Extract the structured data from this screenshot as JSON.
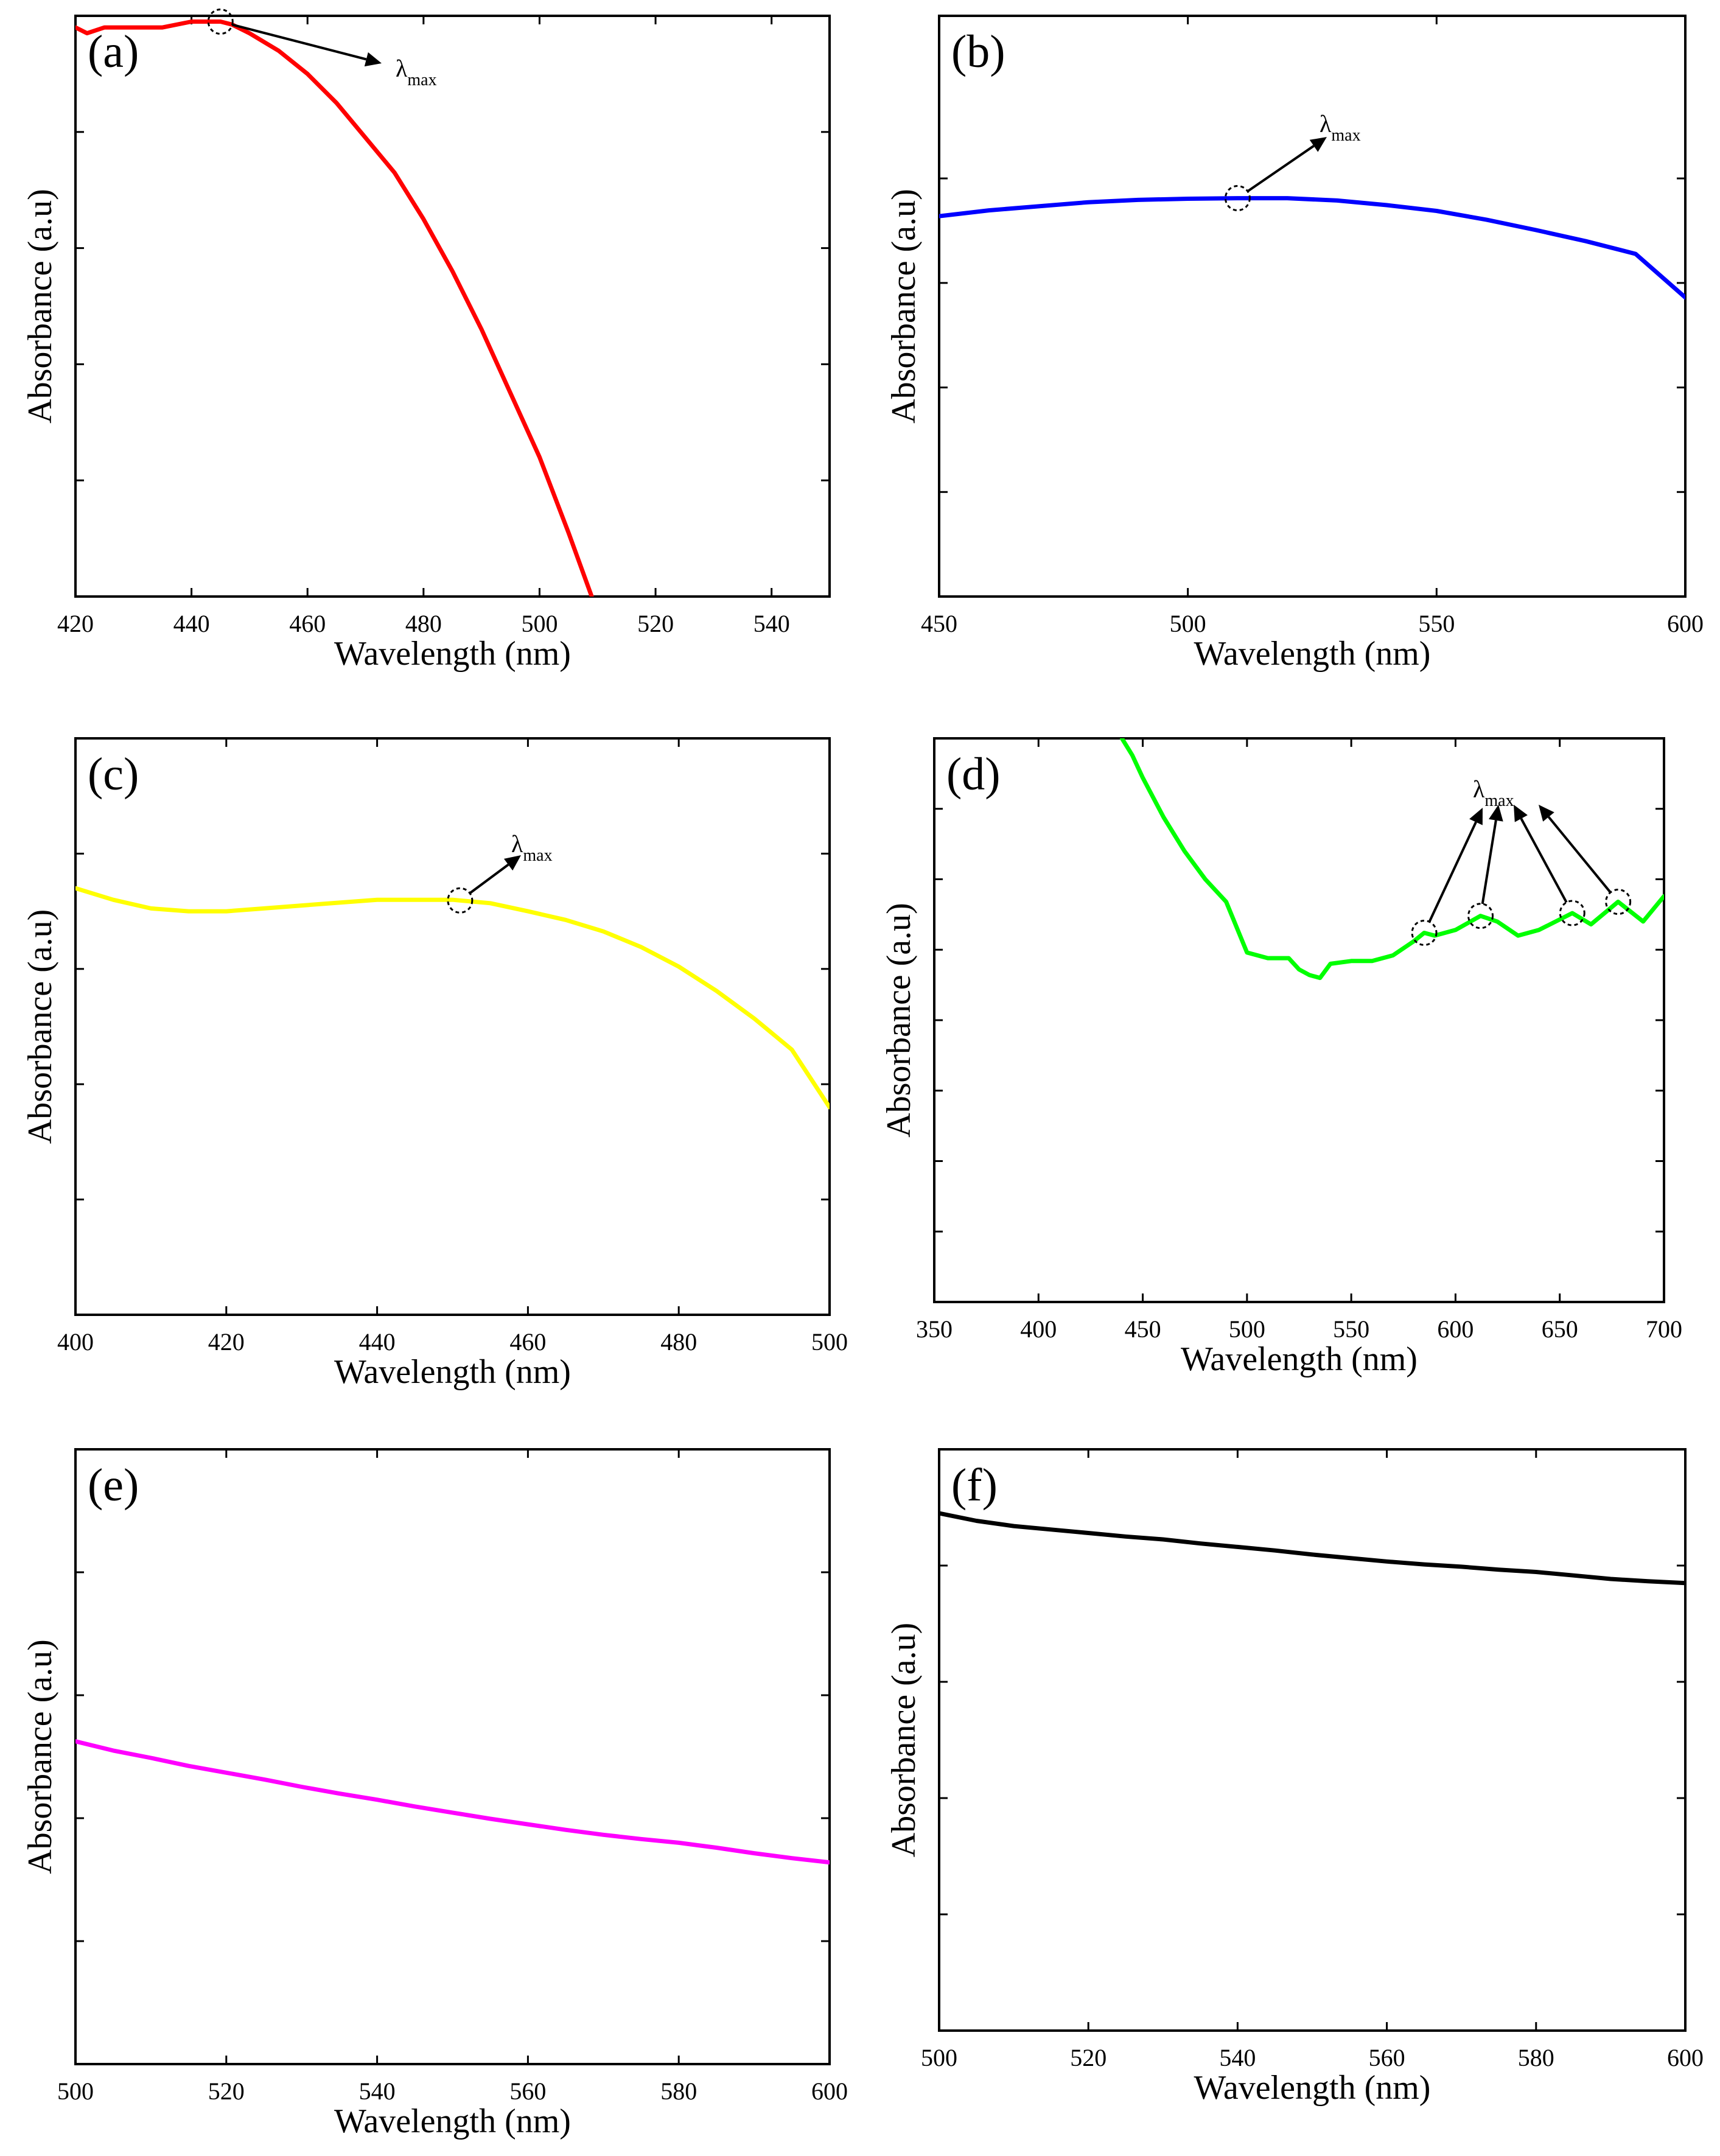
{
  "figure": {
    "panels": [
      {
        "id": "a",
        "letter": "(a)",
        "color": "#ff0000",
        "xlabel": "Wavelength (nm)",
        "ylabel": "Absorbance (a.u)",
        "annotation": {
          "symbol": "λ",
          "subscript": "max"
        },
        "peaks_nm": [
          445
        ]
      },
      {
        "id": "b",
        "letter": "(b)",
        "color": "#0000ff",
        "xlabel": "Wavelength (nm)",
        "ylabel": "Absorbance (a.u)",
        "annotation": {
          "symbol": "λ",
          "subscript": "max"
        },
        "peaks_nm": [
          510
        ]
      },
      {
        "id": "c",
        "letter": "(c)",
        "color": "#ffff00",
        "xlabel": "Wavelength (nm)",
        "ylabel": "Absorbance (a.u)",
        "annotation": {
          "symbol": "λ",
          "subscript": "max"
        },
        "peaks_nm": [
          451
        ]
      },
      {
        "id": "d",
        "letter": "(d)",
        "color": "#00ff00",
        "xlabel": "Wavelength (nm)",
        "ylabel": "Absorbance (a.u)",
        "annotation": {
          "symbol": "λ",
          "subscript": "max"
        },
        "peaks_nm": [
          585,
          612,
          656,
          678
        ]
      },
      {
        "id": "e",
        "letter": "(e)",
        "color": "#ff00ff",
        "xlabel": "Wavelength (nm)",
        "ylabel": "Absorbance (a.u)",
        "annotation": null,
        "peaks_nm": []
      },
      {
        "id": "f",
        "letter": "(f)",
        "color": "#000000",
        "xlabel": "Wavelength (nm)",
        "ylabel": "Absorbance (a.u)",
        "annotation": null,
        "peaks_nm": []
      }
    ]
  },
  "chart_data": [
    {
      "panel": "a",
      "type": "line",
      "title": "(a)",
      "xlabel": "Wavelength (nm)",
      "ylabel": "Absorbance (a.u)",
      "xlim": [
        420,
        550
      ],
      "ylim": [
        0,
        1
      ],
      "xticks": [
        420,
        440,
        460,
        480,
        500,
        520,
        540
      ],
      "yticks": [
        0.2,
        0.4,
        0.6,
        0.8
      ],
      "series": [
        {
          "name": "a",
          "x": [
            420,
            422,
            425,
            430,
            435,
            440,
            445,
            447,
            450,
            455,
            460,
            465,
            470,
            475,
            480,
            485,
            490,
            495,
            500,
            505,
            509
          ],
          "y": [
            0.98,
            0.97,
            0.98,
            0.98,
            0.98,
            0.99,
            0.99,
            0.985,
            0.97,
            0.94,
            0.9,
            0.85,
            0.79,
            0.73,
            0.65,
            0.56,
            0.46,
            0.35,
            0.24,
            0.11,
            0.0
          ]
        }
      ]
    },
    {
      "panel": "b",
      "type": "line",
      "title": "(b)",
      "xlabel": "Wavelength (nm)",
      "ylabel": "Absorbance (a.u)",
      "xlim": [
        450,
        600
      ],
      "ylim": [
        0,
        1
      ],
      "xticks": [
        450,
        500,
        550,
        600
      ],
      "yticks": [
        0.18,
        0.36,
        0.54,
        0.72
      ],
      "series": [
        {
          "name": "b",
          "x": [
            450,
            460,
            470,
            480,
            490,
            500,
            510,
            520,
            530,
            540,
            550,
            560,
            570,
            580,
            590,
            600
          ],
          "y": [
            0.655,
            0.665,
            0.672,
            0.679,
            0.683,
            0.685,
            0.686,
            0.686,
            0.682,
            0.674,
            0.664,
            0.649,
            0.631,
            0.612,
            0.59,
            0.515
          ]
        }
      ]
    },
    {
      "panel": "c",
      "type": "line",
      "title": "(c)",
      "xlabel": "Wavelength (nm)",
      "ylabel": "Absorbance (a.u)",
      "xlim": [
        400,
        500
      ],
      "ylim": [
        0,
        1
      ],
      "xticks": [
        400,
        420,
        440,
        460,
        480,
        500
      ],
      "yticks": [
        0.2,
        0.4,
        0.6,
        0.8
      ],
      "series": [
        {
          "name": "c",
          "x": [
            400,
            405,
            410,
            415,
            420,
            425,
            430,
            435,
            440,
            445,
            450,
            455,
            460,
            465,
            470,
            475,
            480,
            485,
            490,
            495,
            500
          ],
          "y": [
            0.74,
            0.72,
            0.705,
            0.7,
            0.7,
            0.705,
            0.71,
            0.715,
            0.72,
            0.72,
            0.72,
            0.714,
            0.7,
            0.685,
            0.665,
            0.638,
            0.604,
            0.562,
            0.514,
            0.46,
            0.36
          ]
        }
      ]
    },
    {
      "panel": "d",
      "type": "line",
      "title": "(d)",
      "xlabel": "Wavelength (nm)",
      "ylabel": "Absorbance (a.u)",
      "xlim": [
        350,
        700
      ],
      "ylim": [
        0,
        1
      ],
      "xticks": [
        350,
        400,
        450,
        500,
        550,
        600,
        650,
        700
      ],
      "yticks": [
        0.125,
        0.25,
        0.375,
        0.5,
        0.625,
        0.75,
        0.875
      ],
      "series": [
        {
          "name": "d",
          "x": [
            440,
            445,
            450,
            460,
            470,
            480,
            490,
            500,
            510,
            520,
            525,
            530,
            535,
            540,
            550,
            560,
            570,
            580,
            585,
            590,
            600,
            612,
            620,
            630,
            640,
            656,
            665,
            678,
            690,
            700
          ],
          "y": [
            1.0,
            0.97,
            0.93,
            0.86,
            0.8,
            0.75,
            0.71,
            0.62,
            0.61,
            0.61,
            0.59,
            0.58,
            0.575,
            0.6,
            0.605,
            0.605,
            0.615,
            0.64,
            0.655,
            0.65,
            0.66,
            0.685,
            0.675,
            0.65,
            0.66,
            0.69,
            0.67,
            0.71,
            0.675,
            0.72
          ]
        }
      ]
    },
    {
      "panel": "e",
      "type": "line",
      "title": "(e)",
      "xlabel": "Wavelength (nm)",
      "ylabel": "Absorbance (a.u)",
      "xlim": [
        500,
        600
      ],
      "ylim": [
        0,
        1
      ],
      "xticks": [
        500,
        520,
        540,
        560,
        580,
        600
      ],
      "yticks": [
        0.2,
        0.4,
        0.6,
        0.8
      ],
      "series": [
        {
          "name": "e",
          "x": [
            500,
            505,
            510,
            515,
            520,
            525,
            530,
            535,
            540,
            545,
            550,
            555,
            560,
            565,
            570,
            575,
            580,
            585,
            590,
            595,
            600
          ],
          "y": [
            0.525,
            0.51,
            0.498,
            0.485,
            0.474,
            0.463,
            0.451,
            0.44,
            0.43,
            0.419,
            0.409,
            0.399,
            0.39,
            0.381,
            0.373,
            0.366,
            0.36,
            0.352,
            0.343,
            0.335,
            0.328
          ]
        }
      ]
    },
    {
      "panel": "f",
      "type": "line",
      "title": "(f)",
      "xlabel": "Wavelength (nm)",
      "ylabel": "Absorbance (a.u)",
      "xlim": [
        500,
        600
      ],
      "ylim": [
        0,
        1
      ],
      "xticks": [
        500,
        520,
        540,
        560,
        580,
        600
      ],
      "yticks": [
        0.2,
        0.4,
        0.6,
        0.8
      ],
      "series": [
        {
          "name": "f",
          "x": [
            500,
            505,
            510,
            515,
            520,
            525,
            530,
            535,
            540,
            545,
            550,
            555,
            560,
            565,
            570,
            575,
            580,
            585,
            590,
            595,
            600
          ],
          "y": [
            0.89,
            0.877,
            0.868,
            0.862,
            0.856,
            0.85,
            0.845,
            0.838,
            0.832,
            0.826,
            0.819,
            0.813,
            0.807,
            0.802,
            0.798,
            0.793,
            0.789,
            0.783,
            0.777,
            0.773,
            0.77
          ]
        }
      ]
    }
  ]
}
